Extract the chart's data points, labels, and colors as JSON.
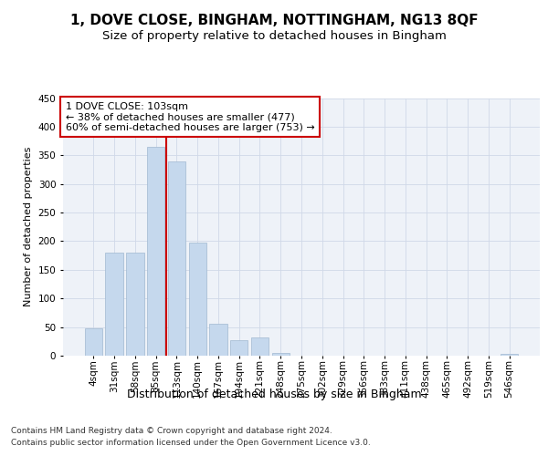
{
  "title": "1, DOVE CLOSE, BINGHAM, NOTTINGHAM, NG13 8QF",
  "subtitle": "Size of property relative to detached houses in Bingham",
  "xlabel": "Distribution of detached houses by size in Bingham",
  "ylabel": "Number of detached properties",
  "categories": [
    "4sqm",
    "31sqm",
    "58sqm",
    "85sqm",
    "113sqm",
    "140sqm",
    "167sqm",
    "194sqm",
    "221sqm",
    "248sqm",
    "275sqm",
    "302sqm",
    "329sqm",
    "356sqm",
    "383sqm",
    "411sqm",
    "438sqm",
    "465sqm",
    "492sqm",
    "519sqm",
    "546sqm"
  ],
  "values": [
    47,
    180,
    180,
    365,
    340,
    197,
    55,
    27,
    32,
    5,
    0,
    0,
    0,
    0,
    0,
    0,
    0,
    0,
    0,
    0,
    3
  ],
  "bar_color": "#c5d8ed",
  "bar_edge_color": "#a0b8d0",
  "vline_x": 3.5,
  "vline_color": "#cc0000",
  "annotation_text": "1 DOVE CLOSE: 103sqm\n← 38% of detached houses are smaller (477)\n60% of semi-detached houses are larger (753) →",
  "annotation_box_color": "#ffffff",
  "annotation_box_edge_color": "#cc0000",
  "ylim": [
    0,
    450
  ],
  "yticks": [
    0,
    50,
    100,
    150,
    200,
    250,
    300,
    350,
    400,
    450
  ],
  "grid_color": "#d0d8e8",
  "background_color": "#eef2f8",
  "footer_line1": "Contains HM Land Registry data © Crown copyright and database right 2024.",
  "footer_line2": "Contains public sector information licensed under the Open Government Licence v3.0.",
  "title_fontsize": 11,
  "subtitle_fontsize": 9.5,
  "xlabel_fontsize": 9,
  "ylabel_fontsize": 8,
  "tick_fontsize": 7.5,
  "annotation_fontsize": 8,
  "footer_fontsize": 6.5
}
